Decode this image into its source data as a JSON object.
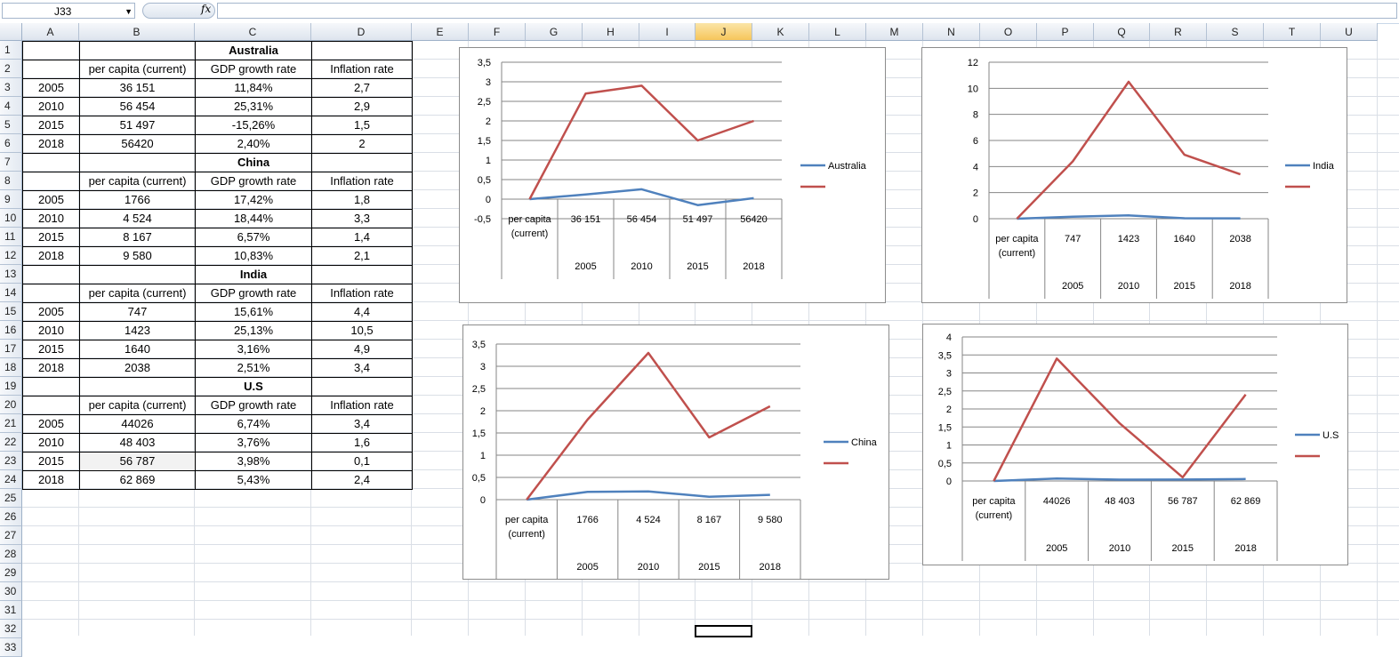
{
  "formula_bar": {
    "name_box": "J33",
    "fx_label": "fx",
    "formula": ""
  },
  "columns": [
    "A",
    "B",
    "C",
    "D",
    "E",
    "F",
    "G",
    "H",
    "I",
    "J",
    "K",
    "L",
    "M",
    "N",
    "O",
    "P",
    "Q",
    "R",
    "S",
    "T",
    "U"
  ],
  "selected_column": "J",
  "rows": [
    "1",
    "2",
    "3",
    "4",
    "5",
    "6",
    "7",
    "8",
    "9",
    "10",
    "11",
    "12",
    "13",
    "14",
    "15",
    "16",
    "17",
    "18",
    "19",
    "20",
    "21",
    "22",
    "23",
    "24",
    "25",
    "26",
    "27",
    "28",
    "29",
    "30",
    "31",
    "32",
    "33"
  ],
  "table": {
    "blocks": [
      {
        "country": "Australia",
        "headers": [
          "per capita (current)",
          "GDP growth rate",
          "Inflation rate"
        ],
        "rows": [
          [
            "2005",
            "36 151",
            "11,84%",
            "2,7"
          ],
          [
            "2010",
            "56 454",
            "25,31%",
            "2,9"
          ],
          [
            "2015",
            "51 497",
            "-15,26%",
            "1,5"
          ],
          [
            "2018",
            "56420",
            "2,40%",
            "2"
          ]
        ]
      },
      {
        "country": "China",
        "headers": [
          "per capita (current)",
          "GDP growth rate",
          "Inflation rate"
        ],
        "rows": [
          [
            "2005",
            "1766",
            "17,42%",
            "1,8"
          ],
          [
            "2010",
            "4 524",
            "18,44%",
            "3,3"
          ],
          [
            "2015",
            "8 167",
            "6,57%",
            "1,4"
          ],
          [
            "2018",
            "9 580",
            "10,83%",
            "2,1"
          ]
        ]
      },
      {
        "country": "India",
        "headers": [
          "per capita (current)",
          "GDP growth rate",
          "Inflation rate"
        ],
        "rows": [
          [
            "2005",
            "747",
            "15,61%",
            "4,4"
          ],
          [
            "2010",
            "1423",
            "25,13%",
            "10,5"
          ],
          [
            "2015",
            "1640",
            "3,16%",
            "4,9"
          ],
          [
            "2018",
            "2038",
            "2,51%",
            "3,4"
          ]
        ]
      },
      {
        "country": "U.S",
        "headers": [
          "per capita (current)",
          "GDP growth rate",
          "Inflation rate"
        ],
        "rows": [
          [
            "2005",
            "44026",
            "6,74%",
            "3,4"
          ],
          [
            "2010",
            "48 403",
            "3,76%",
            "1,6"
          ],
          [
            "2015",
            "56 787",
            "3,98%",
            "0,1"
          ],
          [
            "2018",
            "62 869",
            "5,43%",
            "2,4"
          ]
        ]
      }
    ]
  },
  "chart_data": [
    {
      "type": "line",
      "title": "",
      "legend": "right",
      "categories_top": [
        "per capita (current)",
        "36 151",
        "56 454",
        "51 497",
        "56420"
      ],
      "categories_bottom": [
        "",
        "2005",
        "2010",
        "2015",
        "2018"
      ],
      "ylim": [
        -0.5,
        3.5
      ],
      "yticks": [
        "-0,5",
        "0",
        "0,5",
        "1",
        "1,5",
        "2",
        "2,5",
        "3",
        "3,5"
      ],
      "series": [
        {
          "name": "Australia",
          "color": "#4f81bd",
          "values": [
            0,
            0.1184,
            0.2531,
            -0.1526,
            0.024
          ]
        },
        {
          "name": "",
          "color": "#c0504d",
          "values": [
            0,
            2.7,
            2.9,
            1.5,
            2
          ]
        }
      ]
    },
    {
      "type": "line",
      "title": "",
      "legend": "right",
      "categories_top": [
        "per capita (current)",
        "747",
        "1423",
        "1640",
        "2038"
      ],
      "categories_bottom": [
        "",
        "2005",
        "2010",
        "2015",
        "2018"
      ],
      "ylim": [
        0,
        12
      ],
      "yticks": [
        "0",
        "2",
        "4",
        "6",
        "8",
        "10",
        "12"
      ],
      "series": [
        {
          "name": "India",
          "color": "#4f81bd",
          "values": [
            0,
            0.1561,
            0.2513,
            0.0316,
            0.0251
          ]
        },
        {
          "name": "",
          "color": "#c0504d",
          "values": [
            0,
            4.4,
            10.5,
            4.9,
            3.4
          ]
        }
      ]
    },
    {
      "type": "line",
      "title": "",
      "legend": "right",
      "categories_top": [
        "per capita (current)",
        "1766",
        "4 524",
        "8 167",
        "9 580"
      ],
      "categories_bottom": [
        "",
        "2005",
        "2010",
        "2015",
        "2018"
      ],
      "ylim": [
        0,
        3.5
      ],
      "yticks": [
        "0",
        "0,5",
        "1",
        "1,5",
        "2",
        "2,5",
        "3",
        "3,5"
      ],
      "series": [
        {
          "name": "China",
          "color": "#4f81bd",
          "values": [
            0,
            0.1742,
            0.1844,
            0.0657,
            0.1083
          ]
        },
        {
          "name": "",
          "color": "#c0504d",
          "values": [
            0,
            1.8,
            3.3,
            1.4,
            2.1
          ]
        }
      ]
    },
    {
      "type": "line",
      "title": "",
      "legend": "right",
      "categories_top": [
        "per capita (current)",
        "44026",
        "48 403",
        "56 787",
        "62 869"
      ],
      "categories_bottom": [
        "",
        "2005",
        "2010",
        "2015",
        "2018"
      ],
      "ylim": [
        0,
        4
      ],
      "yticks": [
        "0",
        "0,5",
        "1",
        "1,5",
        "2",
        "2,5",
        "3",
        "3,5",
        "4"
      ],
      "series": [
        {
          "name": "U.S",
          "color": "#4f81bd",
          "values": [
            0,
            0.0674,
            0.0376,
            0.0398,
            0.0543
          ]
        },
        {
          "name": "",
          "color": "#c0504d",
          "values": [
            0,
            3.4,
            1.6,
            0.1,
            2.4
          ]
        }
      ]
    }
  ]
}
